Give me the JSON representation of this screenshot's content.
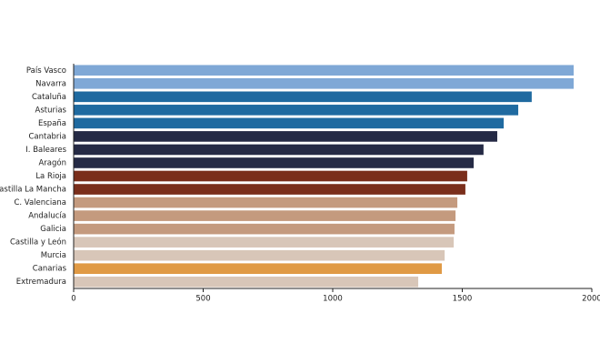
{
  "chart_data": {
    "type": "barh",
    "categories": [
      "País Vasco",
      "Navarra",
      "Cataluña",
      "Asturias",
      "España",
      "Cantabria",
      "I. Baleares",
      "Aragón",
      "La Rioja",
      "Castilla La Mancha",
      "C. Valenciana",
      "Andalucía",
      "Galicia",
      "Castilla y León",
      "Murcia",
      "Canarias",
      "Extremadura"
    ],
    "values": [
      1930,
      1930,
      1768,
      1716,
      1660,
      1635,
      1582,
      1544,
      1519,
      1512,
      1481,
      1474,
      1470,
      1467,
      1432,
      1421,
      1330
    ],
    "colors": [
      "#7fa8d6",
      "#7fa8d6",
      "#1f6aa0",
      "#1f6aa0",
      "#1f6aa0",
      "#252a45",
      "#252a45",
      "#252a45",
      "#7a2e1b",
      "#7a2e1b",
      "#c49a7e",
      "#c49a7e",
      "#c49a7e",
      "#d8c6b8",
      "#d8c6b8",
      "#e09a45",
      "#d8c6b8"
    ],
    "xlim": [
      0,
      2000
    ],
    "xticks": [
      0,
      500,
      1000,
      1500,
      2000
    ]
  }
}
